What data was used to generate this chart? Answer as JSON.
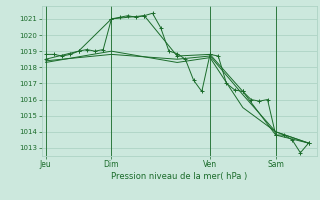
{
  "bg_color": "#cce8dd",
  "grid_color": "#a8cfc0",
  "line_color": "#1a6b2a",
  "title": "Pression niveau de la mer( hPa )",
  "ylim": [
    1012.5,
    1021.8
  ],
  "yticks": [
    1013,
    1014,
    1015,
    1016,
    1017,
    1018,
    1019,
    1020,
    1021
  ],
  "xtick_labels": [
    "Jeu",
    "Dim",
    "Ven",
    "Sam"
  ],
  "xtick_positions": [
    0,
    8,
    20,
    28
  ],
  "vlines": [
    0,
    8,
    20,
    28
  ],
  "xlim": [
    -0.5,
    33
  ],
  "series1_x": [
    0,
    1,
    2,
    3,
    4,
    5,
    6,
    7,
    8,
    9,
    10,
    11,
    12,
    13,
    14,
    15,
    16,
    17,
    18,
    19,
    20,
    21,
    22,
    23,
    24,
    25,
    26,
    27,
    28,
    29,
    30,
    31,
    32
  ],
  "series1_y": [
    1018.8,
    1018.8,
    1018.7,
    1018.8,
    1019.0,
    1019.1,
    1019.0,
    1019.1,
    1021.0,
    1021.1,
    1021.2,
    1021.1,
    1021.2,
    1021.35,
    1020.45,
    1019.0,
    1018.85,
    1018.5,
    1017.2,
    1016.5,
    1018.8,
    1018.7,
    1017.0,
    1016.6,
    1016.5,
    1016.0,
    1015.9,
    1016.0,
    1013.8,
    1013.8,
    1013.5,
    1012.7,
    1013.3
  ],
  "series2_x": [
    0,
    4,
    8,
    12,
    16,
    20,
    24,
    28,
    32
  ],
  "series2_y": [
    1018.5,
    1019.0,
    1021.0,
    1021.2,
    1018.7,
    1018.8,
    1016.5,
    1013.8,
    1013.3
  ],
  "series3_x": [
    0,
    8,
    16,
    20,
    24,
    28,
    32
  ],
  "series3_y": [
    1018.4,
    1018.8,
    1018.5,
    1018.7,
    1016.3,
    1014.0,
    1013.3
  ],
  "series4_x": [
    0,
    8,
    16,
    20,
    24,
    28,
    32
  ],
  "series4_y": [
    1018.3,
    1019.0,
    1018.3,
    1018.6,
    1015.5,
    1014.0,
    1013.3
  ]
}
